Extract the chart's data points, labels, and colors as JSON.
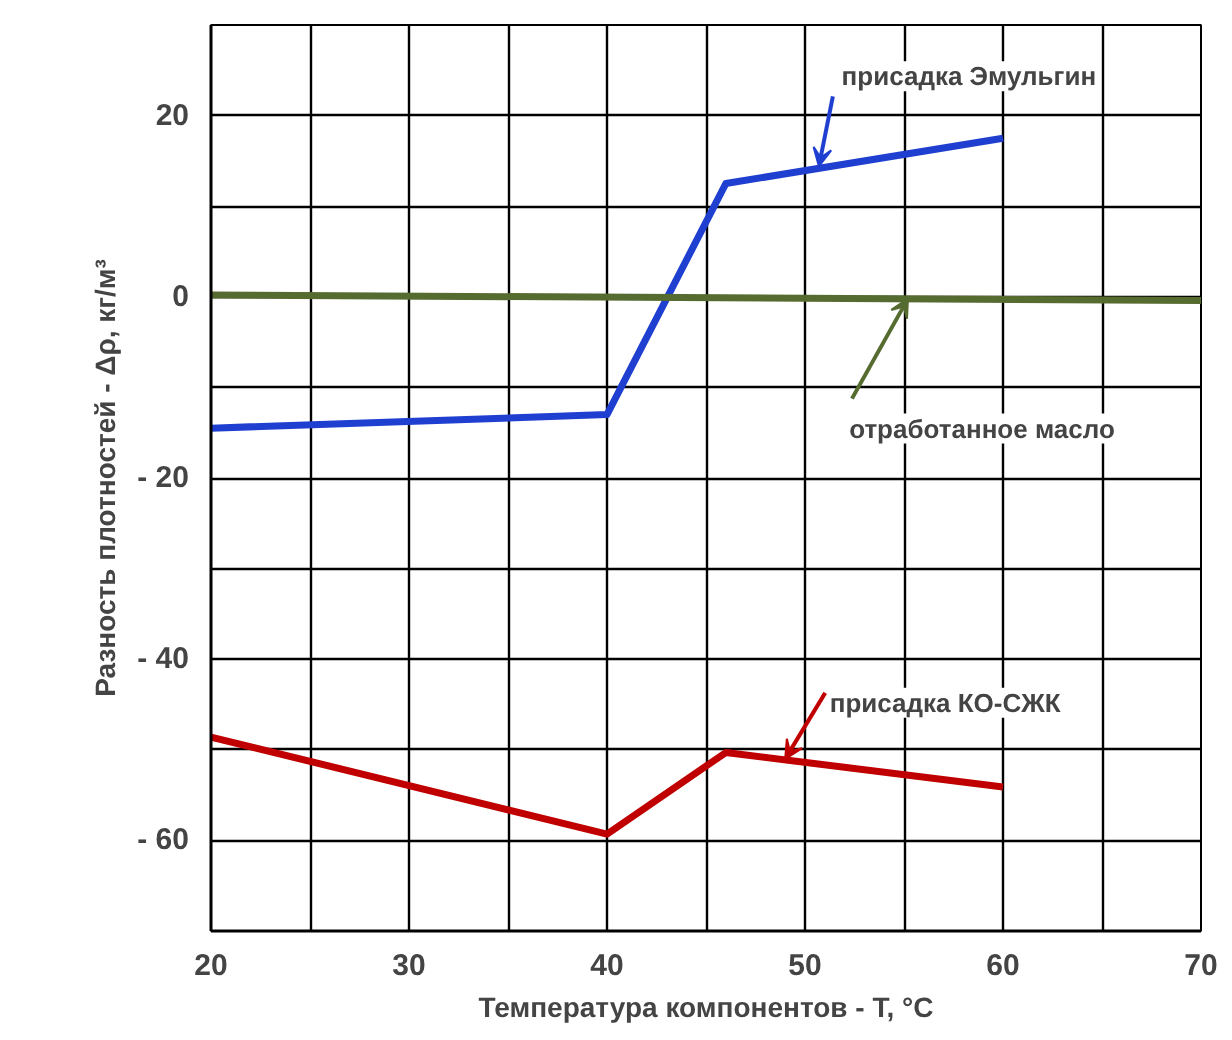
{
  "chart_data": {
    "type": "line",
    "xlabel": "Температура компонентов - T, °C",
    "ylabel": "Разность плотностей - Δρ, кг/м³",
    "xlim": [
      20,
      70
    ],
    "ylim": [
      -70,
      30
    ],
    "xticks": [
      20,
      {
        "value": 25,
        "label": null
      },
      30,
      {
        "value": 35,
        "label": null
      },
      40,
      {
        "value": 45,
        "label": null
      },
      50,
      {
        "value": 55,
        "label": null
      },
      60,
      {
        "value": 65,
        "label": null
      },
      70
    ],
    "yticks": [
      {
        "value": -70,
        "label": null
      },
      {
        "value": -60,
        "label": "- 60"
      },
      {
        "value": -50,
        "label": null
      },
      {
        "value": -40,
        "label": "- 40"
      },
      {
        "value": -30,
        "label": null
      },
      {
        "value": -20,
        "label": "- 20"
      },
      {
        "value": -10,
        "label": null
      },
      0,
      {
        "value": 10,
        "label": null
      },
      20,
      {
        "value": 30,
        "label": null
      }
    ],
    "grid": true,
    "marker": "none",
    "line_style": "solid",
    "series": [
      {
        "color": "#1f3fd0",
        "x": [
          20,
          40,
          46,
          60
        ],
        "values": [
          -14.5,
          -13,
          12.5,
          17.5
        ]
      },
      {
        "color": "#556b2f",
        "x": [
          20,
          70
        ],
        "values": [
          0.2,
          -0.4
        ]
      },
      {
        "color": "#c00000",
        "x": [
          20,
          40,
          46,
          60
        ],
        "values": [
          -48.6,
          -59.3,
          -50.3,
          -54.1
        ]
      }
    ],
    "annotations": [
      {
        "text": "присадка Эмульгин",
        "x": 50.7,
        "y": 14.4
      },
      {
        "text": "отработанное масло",
        "x": 55.2,
        "y": -0.2
      },
      {
        "text": "присадка КО-СЖК",
        "x": 49,
        "y": -51
      }
    ]
  }
}
